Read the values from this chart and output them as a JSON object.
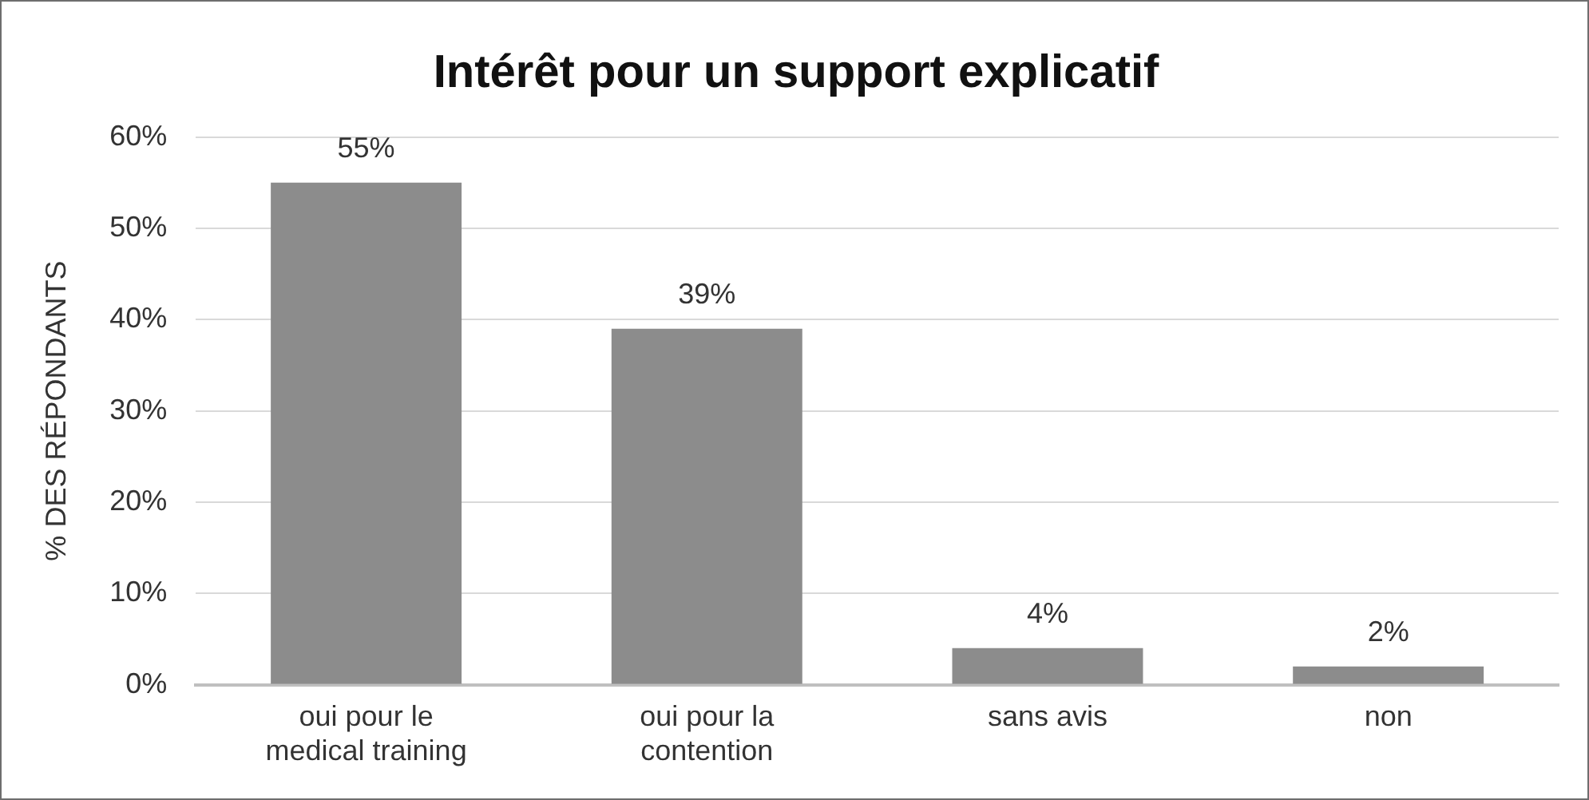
{
  "chart_data": {
    "type": "bar",
    "title": "Intérêt pour un support explicatif",
    "ylabel": "% DES RÉPONDANTS",
    "categories": [
      "oui pour le medical training",
      "oui pour la contention",
      "sans avis",
      "non"
    ],
    "values": [
      55,
      39,
      4,
      2
    ],
    "color": "#8c8c8c",
    "value_labels": [
      "55%",
      "39%",
      "4%",
      "2%"
    ],
    "ylim": [
      0,
      60
    ],
    "yticks": [
      {
        "value": 0,
        "label": "0%"
      },
      {
        "value": 10,
        "label": "10%"
      },
      {
        "value": 20,
        "label": "20%"
      },
      {
        "value": 30,
        "label": "30%"
      },
      {
        "value": 40,
        "label": "40%"
      },
      {
        "value": 50,
        "label": "50%"
      },
      {
        "value": 60,
        "label": "60%"
      }
    ],
    "grid": "y",
    "legend": false
  }
}
